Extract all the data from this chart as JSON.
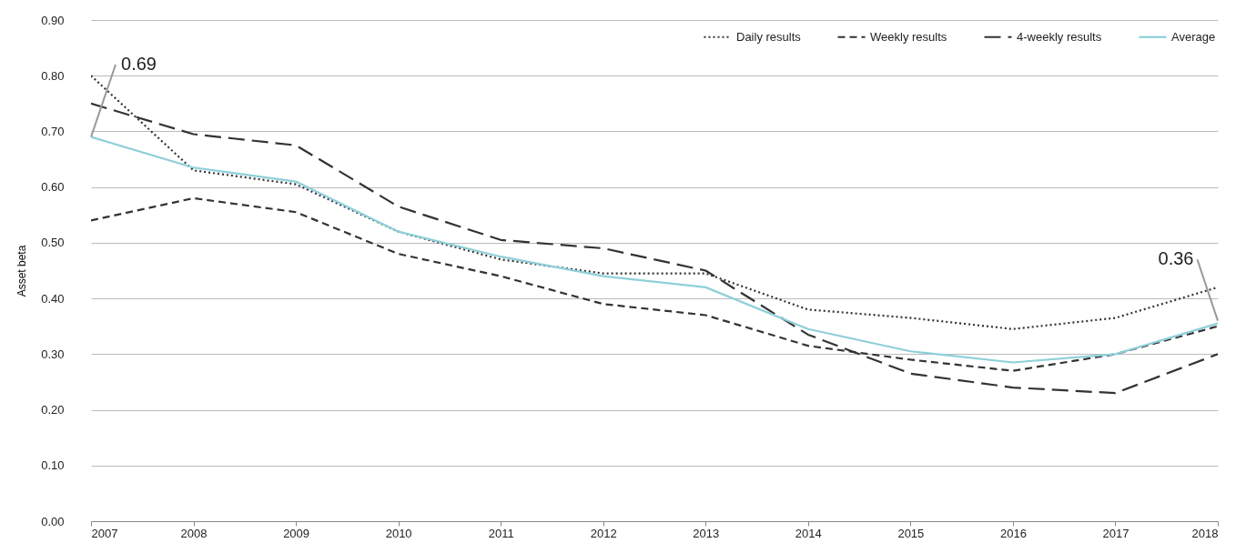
{
  "chart_data": {
    "type": "line",
    "ylabel": "Asset beta",
    "x": [
      2007,
      2008,
      2009,
      2010,
      2011,
      2012,
      2013,
      2014,
      2015,
      2016,
      2017,
      2018
    ],
    "series": [
      {
        "name": "Daily results",
        "color": "#333333",
        "line_style": "dotted",
        "values": [
          0.8,
          0.63,
          0.605,
          0.52,
          0.47,
          0.445,
          0.445,
          0.38,
          0.365,
          0.345,
          0.365,
          0.42
        ]
      },
      {
        "name": "Weekly results",
        "color": "#333333",
        "line_style": "dashed",
        "values": [
          0.54,
          0.58,
          0.555,
          0.48,
          0.44,
          0.39,
          0.37,
          0.315,
          0.29,
          0.27,
          0.3,
          0.35
        ]
      },
      {
        "name": "4-weekly results",
        "color": "#333333",
        "line_style": "dashed",
        "values": [
          0.75,
          0.695,
          0.675,
          0.565,
          0.505,
          0.49,
          0.45,
          0.335,
          0.265,
          0.24,
          0.23,
          0.3
        ]
      },
      {
        "name": "Average",
        "color": "#8ecfd9",
        "line_style": "solid",
        "values": [
          0.69,
          0.635,
          0.61,
          0.52,
          0.475,
          0.44,
          0.42,
          0.345,
          0.305,
          0.285,
          0.3,
          0.355
        ]
      }
    ],
    "annotations": [
      {
        "text": "0.69",
        "x": 2007,
        "y": 0.69
      },
      {
        "text": "0.36",
        "x": 2018,
        "y": 0.36
      }
    ],
    "xlim": [
      2007,
      2018
    ],
    "xticks": [
      2007,
      2008,
      2009,
      2010,
      2011,
      2012,
      2013,
      2014,
      2015,
      2016,
      2017,
      2018
    ],
    "ylim": [
      0,
      0.9
    ],
    "yticks": [
      {
        "value": 0,
        "label": "0.00"
      },
      {
        "value": 0.1,
        "label": "0.10"
      },
      {
        "value": 0.2,
        "label": "0.20"
      },
      {
        "value": 0.3,
        "label": "0.30"
      },
      {
        "value": 0.4,
        "label": "0.40"
      },
      {
        "value": 0.5,
        "label": "0.50"
      },
      {
        "value": 0.6,
        "label": "0.60"
      },
      {
        "value": 0.7,
        "label": "0.70"
      },
      {
        "value": 0.8,
        "label": "0.80"
      },
      {
        "value": 0.9,
        "label": "0.90"
      }
    ],
    "grid": "y",
    "legend": "top right"
  }
}
